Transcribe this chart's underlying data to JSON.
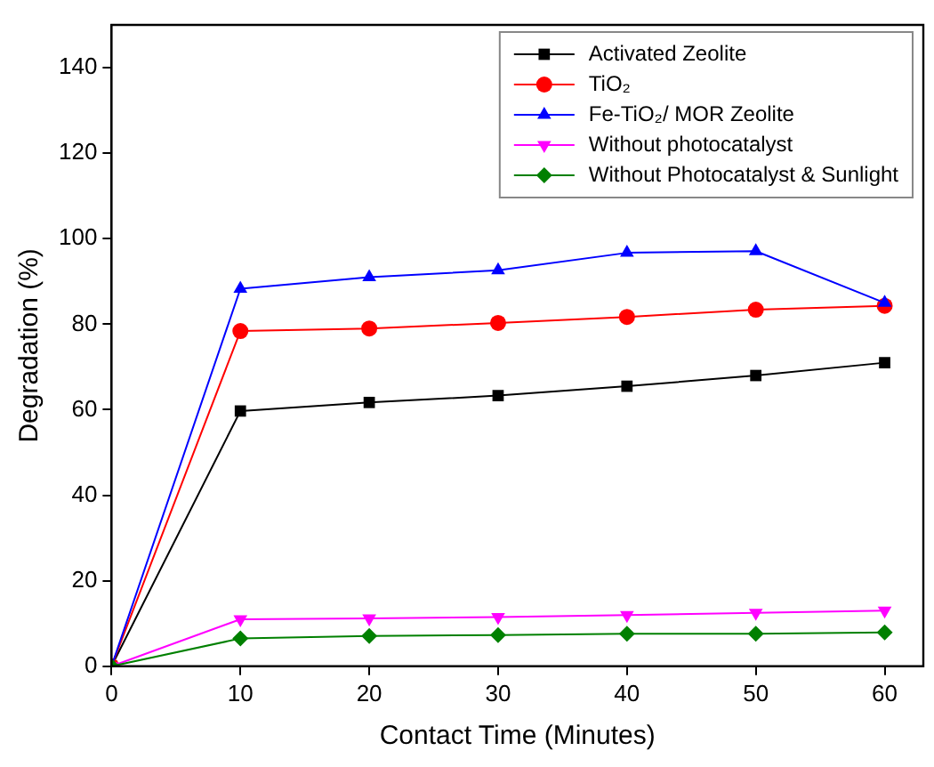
{
  "chart_data": {
    "type": "line",
    "xlabel": "Contact Time (Minutes)",
    "ylabel": "Degradation (%)",
    "x": [
      0,
      10,
      20,
      30,
      40,
      50,
      60
    ],
    "xlim": [
      0,
      63
    ],
    "xticks": [
      0,
      10,
      20,
      30,
      40,
      50,
      60
    ],
    "ylim": [
      0,
      150
    ],
    "yticks": [
      0,
      20,
      40,
      60,
      80,
      100,
      120,
      140
    ],
    "grid": false,
    "legend": "top right",
    "series": [
      {
        "name": "Activated Zeolite",
        "color": "#000000",
        "marker": "square",
        "values": [
          0,
          59.7,
          61.7,
          63.3,
          65.5,
          68,
          71
        ]
      },
      {
        "name": "TiO₂",
        "color": "#ff0000",
        "marker": "circle",
        "values": [
          0,
          78.4,
          79,
          80.3,
          81.7,
          83.4,
          84.3
        ]
      },
      {
        "name": "Fe-TiO₂/ MOR Zeolite",
        "color": "#0000ff",
        "marker": "triangle",
        "values": [
          0,
          88.3,
          91,
          92.6,
          96.7,
          97.1,
          85
        ]
      },
      {
        "name": "Without photocatalyst",
        "color": "#ff00ff",
        "marker": "triangle-down",
        "values": [
          0,
          11,
          11.2,
          11.5,
          12,
          12.5,
          13
        ]
      },
      {
        "name": "Without Photocatalyst & Sunlight",
        "color": "#008000",
        "marker": "diamond",
        "values": [
          0,
          6.5,
          7.1,
          7.3,
          7.6,
          7.6,
          7.9
        ]
      }
    ]
  }
}
